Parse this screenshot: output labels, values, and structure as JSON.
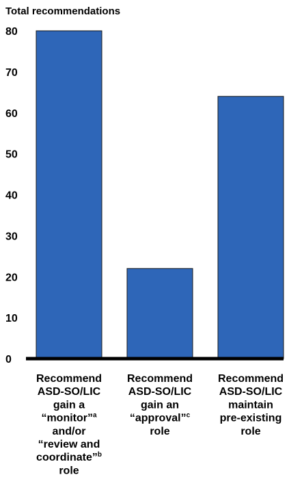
{
  "chart_data": {
    "type": "bar",
    "ylabel": "Total recommendations",
    "ylim": [
      0,
      80
    ],
    "yticks": [
      "0",
      "10",
      "20",
      "30",
      "40",
      "50",
      "60",
      "70",
      "80"
    ],
    "categories": [
      "Recommend ASD-SO/LIC gain a “monitor”a and/or “review and coordinate”b role",
      "Recommend ASD-SO/LIC gain an “approval”c role",
      "Recommend ASD-SO/LIC maintain pre-existing role"
    ],
    "category_label_lines": [
      [
        "Recommend",
        "ASD-SO/LIC",
        "gain a",
        "“monitor”|a",
        "and/or",
        "“review and",
        "coordinate”|b",
        "role"
      ],
      [
        "Recommend",
        "ASD-SO/LIC",
        "gain an",
        "“approval”|c",
        "role"
      ],
      [
        "Recommend",
        "ASD-SO/LIC",
        "maintain",
        "pre-existing",
        "role"
      ]
    ],
    "values": [
      80,
      22,
      64
    ],
    "bar_color": "#2e66b8",
    "axis_color": "#000000",
    "grid": false,
    "legend": "none"
  }
}
